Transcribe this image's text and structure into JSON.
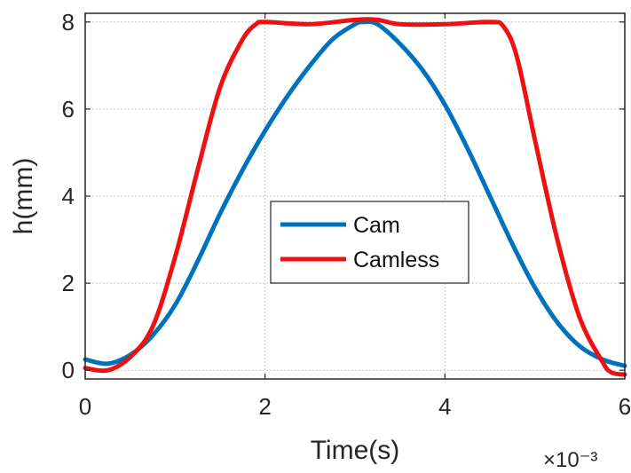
{
  "chart_data": {
    "type": "line",
    "xlabel": "Time(s)",
    "ylabel": "h(mm)",
    "x_exponent_label": "×10⁻³",
    "xlim": [
      0,
      6
    ],
    "ylim": [
      -0.2,
      8.2
    ],
    "xticks": [
      0,
      2,
      4,
      6
    ],
    "yticks": [
      0,
      2,
      4,
      6,
      8
    ],
    "grid": true,
    "legend_position": "center",
    "series": [
      {
        "name": "Cam",
        "color": "#0072BD",
        "x": [
          0,
          0.25,
          0.5,
          0.75,
          1.0,
          1.25,
          1.5,
          1.75,
          2.0,
          2.25,
          2.5,
          2.75,
          3.0,
          3.1,
          3.25,
          3.5,
          3.75,
          4.0,
          4.25,
          4.5,
          4.75,
          5.0,
          5.25,
          5.5,
          5.75,
          6.0
        ],
        "y": [
          0.25,
          0.15,
          0.35,
          0.8,
          1.5,
          2.5,
          3.6,
          4.6,
          5.5,
          6.3,
          7.0,
          7.6,
          7.95,
          8.0,
          7.95,
          7.5,
          6.9,
          6.1,
          5.1,
          4.0,
          2.9,
          1.9,
          1.1,
          0.55,
          0.25,
          0.1
        ]
      },
      {
        "name": "Camless",
        "color": "#EE1111",
        "x": [
          0,
          0.25,
          0.5,
          0.75,
          1.0,
          1.25,
          1.5,
          1.75,
          1.9,
          2.0,
          2.5,
          3.0,
          3.25,
          3.5,
          4.0,
          4.5,
          4.65,
          4.8,
          5.0,
          5.25,
          5.5,
          5.75,
          5.85,
          6.0
        ],
        "y": [
          0.05,
          0.0,
          0.3,
          1.0,
          2.6,
          4.6,
          6.5,
          7.6,
          7.95,
          8.0,
          7.95,
          8.05,
          8.05,
          7.95,
          7.95,
          8.0,
          7.9,
          7.2,
          5.3,
          3.0,
          1.2,
          0.2,
          -0.05,
          -0.1
        ]
      }
    ]
  }
}
